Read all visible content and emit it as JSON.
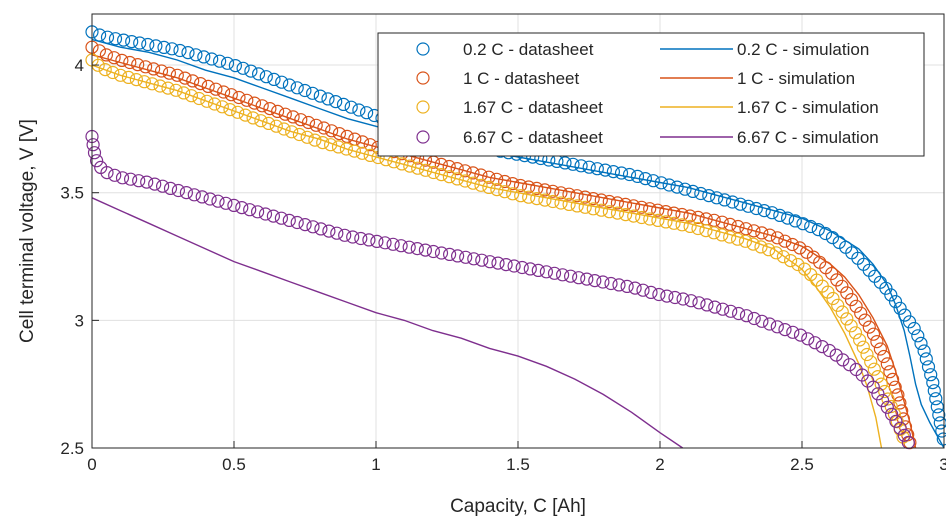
{
  "chart_data": {
    "type": "line",
    "xlabel": "Capacity, C [Ah]",
    "ylabel": "Cell terminal voltage, V [V]",
    "xlim": [
      0,
      3
    ],
    "ylim": [
      2.5,
      4.2
    ],
    "x_ticks": [
      0,
      0.5,
      1,
      1.5,
      2,
      2.5,
      3
    ],
    "x_tick_labels": [
      "0",
      "0.5",
      "1",
      "1.5",
      "2",
      "2.5",
      "3"
    ],
    "y_ticks": [
      2.5,
      3,
      3.5,
      4
    ],
    "y_tick_labels": [
      "2.5",
      "3",
      "3.5",
      "4"
    ],
    "grid": true,
    "legend_position": "top-right",
    "legend_columns": 2,
    "series": [
      {
        "name": "0.2 C - datasheet",
        "style": "markers",
        "color": "#0072BD",
        "x": [
          0,
          0.02,
          0.05,
          0.1,
          0.2,
          0.3,
          0.4,
          0.5,
          0.6,
          0.7,
          0.8,
          0.9,
          1.0,
          1.1,
          1.2,
          1.3,
          1.4,
          1.5,
          1.6,
          1.7,
          1.8,
          1.9,
          2.0,
          2.1,
          2.2,
          2.3,
          2.4,
          2.5,
          2.55,
          2.6,
          2.65,
          2.7,
          2.75,
          2.8,
          2.85,
          2.9,
          2.93,
          2.96,
          2.98,
          3.0
        ],
        "y": [
          4.13,
          4.12,
          4.11,
          4.1,
          4.08,
          4.06,
          4.03,
          4.0,
          3.96,
          3.92,
          3.88,
          3.84,
          3.8,
          3.76,
          3.73,
          3.7,
          3.67,
          3.65,
          3.63,
          3.61,
          3.59,
          3.57,
          3.54,
          3.51,
          3.48,
          3.45,
          3.42,
          3.38,
          3.36,
          3.33,
          3.29,
          3.24,
          3.18,
          3.12,
          3.04,
          2.96,
          2.88,
          2.76,
          2.64,
          2.52
        ]
      },
      {
        "name": "0.2 C - simulation",
        "style": "line",
        "color": "#0072BD",
        "x": [
          0,
          0.1,
          0.2,
          0.3,
          0.4,
          0.5,
          0.6,
          0.7,
          0.8,
          0.9,
          1.0,
          1.1,
          1.2,
          1.3,
          1.4,
          1.5,
          1.6,
          1.7,
          1.8,
          1.9,
          2.0,
          2.1,
          2.2,
          2.3,
          2.4,
          2.5,
          2.6,
          2.7,
          2.75,
          2.8,
          2.83,
          2.86,
          2.88,
          2.9,
          2.92,
          2.95,
          2.98,
          3.0
        ],
        "y": [
          4.1,
          4.07,
          4.05,
          4.02,
          3.98,
          3.95,
          3.91,
          3.87,
          3.83,
          3.79,
          3.76,
          3.73,
          3.7,
          3.68,
          3.66,
          3.64,
          3.62,
          3.6,
          3.58,
          3.56,
          3.54,
          3.52,
          3.49,
          3.46,
          3.43,
          3.4,
          3.35,
          3.28,
          3.22,
          3.14,
          3.06,
          2.96,
          2.86,
          2.75,
          2.67,
          2.6,
          2.54,
          2.5
        ]
      },
      {
        "name": "1 C - datasheet",
        "style": "markers",
        "color": "#D95319",
        "x": [
          0,
          0.02,
          0.05,
          0.1,
          0.2,
          0.3,
          0.4,
          0.5,
          0.6,
          0.7,
          0.8,
          0.9,
          1.0,
          1.1,
          1.2,
          1.3,
          1.4,
          1.5,
          1.6,
          1.7,
          1.8,
          1.9,
          2.0,
          2.1,
          2.2,
          2.3,
          2.4,
          2.5,
          2.55,
          2.6,
          2.65,
          2.7,
          2.75,
          2.8,
          2.84,
          2.86,
          2.88
        ],
        "y": [
          4.07,
          4.06,
          4.04,
          4.02,
          3.99,
          3.96,
          3.92,
          3.88,
          3.84,
          3.8,
          3.76,
          3.72,
          3.68,
          3.65,
          3.62,
          3.59,
          3.56,
          3.53,
          3.51,
          3.49,
          3.47,
          3.45,
          3.43,
          3.41,
          3.39,
          3.36,
          3.33,
          3.28,
          3.24,
          3.19,
          3.12,
          3.04,
          2.95,
          2.83,
          2.7,
          2.6,
          2.52
        ]
      },
      {
        "name": "1 C - simulation",
        "style": "line",
        "color": "#D95319",
        "x": [
          0,
          0.1,
          0.2,
          0.3,
          0.4,
          0.5,
          0.6,
          0.7,
          0.8,
          0.9,
          1.0,
          1.1,
          1.2,
          1.3,
          1.4,
          1.5,
          1.6,
          1.7,
          1.8,
          1.9,
          2.0,
          2.1,
          2.2,
          2.3,
          2.4,
          2.5,
          2.6,
          2.65,
          2.7,
          2.75,
          2.8,
          2.83,
          2.86,
          2.88,
          2.9
        ],
        "y": [
          4.04,
          4.01,
          3.98,
          3.95,
          3.91,
          3.87,
          3.83,
          3.79,
          3.75,
          3.71,
          3.68,
          3.65,
          3.62,
          3.59,
          3.56,
          3.54,
          3.52,
          3.5,
          3.48,
          3.46,
          3.44,
          3.42,
          3.39,
          3.36,
          3.33,
          3.29,
          3.22,
          3.17,
          3.1,
          3.01,
          2.9,
          2.8,
          2.68,
          2.6,
          2.5
        ]
      },
      {
        "name": "1.67 C - datasheet",
        "style": "markers",
        "color": "#EDB120",
        "x": [
          0,
          0.02,
          0.05,
          0.1,
          0.2,
          0.3,
          0.4,
          0.5,
          0.6,
          0.7,
          0.8,
          0.9,
          1.0,
          1.1,
          1.2,
          1.3,
          1.4,
          1.5,
          1.6,
          1.7,
          1.8,
          1.9,
          2.0,
          2.1,
          2.2,
          2.3,
          2.4,
          2.5,
          2.55,
          2.6,
          2.65,
          2.7,
          2.75,
          2.8,
          2.83,
          2.86
        ],
        "y": [
          4.02,
          4.0,
          3.98,
          3.96,
          3.93,
          3.9,
          3.86,
          3.82,
          3.78,
          3.74,
          3.7,
          3.67,
          3.64,
          3.61,
          3.58,
          3.55,
          3.52,
          3.49,
          3.47,
          3.45,
          3.43,
          3.41,
          3.39,
          3.37,
          3.34,
          3.31,
          3.27,
          3.21,
          3.16,
          3.1,
          3.02,
          2.93,
          2.82,
          2.7,
          2.62,
          2.53
        ]
      },
      {
        "name": "1.67 C - simulation",
        "style": "line",
        "color": "#EDB120",
        "x": [
          0,
          0.1,
          0.2,
          0.3,
          0.4,
          0.5,
          0.6,
          0.7,
          0.8,
          0.9,
          1.0,
          1.1,
          1.2,
          1.3,
          1.4,
          1.5,
          1.6,
          1.7,
          1.8,
          1.9,
          2.0,
          2.1,
          2.2,
          2.3,
          2.4,
          2.5,
          2.55,
          2.6,
          2.65,
          2.7,
          2.73,
          2.76,
          2.78
        ],
        "y": [
          4.0,
          3.96,
          3.93,
          3.9,
          3.86,
          3.82,
          3.78,
          3.74,
          3.71,
          3.67,
          3.64,
          3.61,
          3.58,
          3.55,
          3.52,
          3.5,
          3.48,
          3.46,
          3.44,
          3.42,
          3.4,
          3.38,
          3.35,
          3.32,
          3.28,
          3.2,
          3.13,
          3.05,
          2.95,
          2.83,
          2.74,
          2.62,
          2.5
        ]
      },
      {
        "name": "6.67 C - datasheet",
        "style": "markers",
        "color": "#7E2F8E",
        "x": [
          0,
          0.005,
          0.01,
          0.02,
          0.05,
          0.1,
          0.2,
          0.3,
          0.4,
          0.5,
          0.6,
          0.7,
          0.8,
          0.9,
          1.0,
          1.1,
          1.2,
          1.3,
          1.4,
          1.5,
          1.6,
          1.7,
          1.8,
          1.9,
          2.0,
          2.1,
          2.2,
          2.3,
          2.4,
          2.5,
          2.6,
          2.7,
          2.75,
          2.8,
          2.85,
          2.88
        ],
        "y": [
          3.72,
          3.68,
          3.65,
          3.61,
          3.58,
          3.56,
          3.54,
          3.51,
          3.48,
          3.45,
          3.42,
          3.39,
          3.36,
          3.33,
          3.31,
          3.29,
          3.27,
          3.25,
          3.23,
          3.21,
          3.19,
          3.17,
          3.15,
          3.13,
          3.1,
          3.08,
          3.05,
          3.02,
          2.98,
          2.94,
          2.88,
          2.8,
          2.74,
          2.66,
          2.57,
          2.51
        ]
      },
      {
        "name": "6.67 C - simulation",
        "style": "line",
        "color": "#7E2F8E",
        "x": [
          0,
          0.1,
          0.2,
          0.3,
          0.4,
          0.5,
          0.6,
          0.7,
          0.8,
          0.9,
          1.0,
          1.1,
          1.2,
          1.3,
          1.4,
          1.5,
          1.6,
          1.7,
          1.8,
          1.9,
          2.0,
          2.08
        ],
        "y": [
          3.48,
          3.43,
          3.38,
          3.33,
          3.28,
          3.23,
          3.19,
          3.15,
          3.11,
          3.07,
          3.03,
          3.0,
          2.96,
          2.93,
          2.89,
          2.86,
          2.82,
          2.77,
          2.71,
          2.64,
          2.56,
          2.5
        ]
      }
    ]
  }
}
